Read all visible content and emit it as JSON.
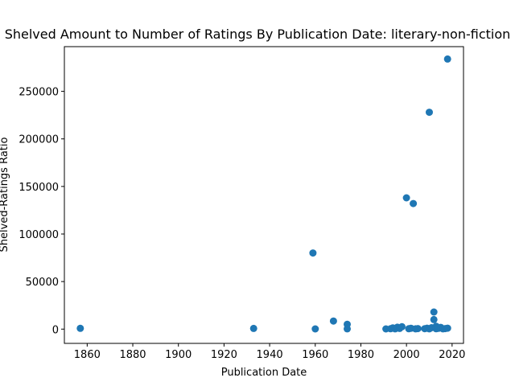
{
  "chart_data": {
    "type": "scatter",
    "title": "Shelved Amount to Number of Ratings By Publication Date: literary-non-fiction",
    "xlabel": "Publication Date",
    "ylabel": "Shelved-Ratings Ratio",
    "xlim": [
      1850,
      2025
    ],
    "ylim": [
      -15000,
      297000
    ],
    "xticks": [
      1860,
      1880,
      1900,
      1920,
      1940,
      1960,
      1980,
      2000,
      2020
    ],
    "yticks": [
      0,
      50000,
      100000,
      150000,
      200000,
      250000
    ],
    "grid": false,
    "color": "#1f77b4",
    "points": [
      {
        "x": 1857,
        "y": 800
      },
      {
        "x": 1933,
        "y": 700
      },
      {
        "x": 1959,
        "y": 80000
      },
      {
        "x": 1960,
        "y": 200
      },
      {
        "x": 1968,
        "y": 8500
      },
      {
        "x": 1974,
        "y": 5000
      },
      {
        "x": 1974,
        "y": 300
      },
      {
        "x": 1991,
        "y": 200
      },
      {
        "x": 1993,
        "y": 400
      },
      {
        "x": 1994,
        "y": 1200
      },
      {
        "x": 1995,
        "y": 300
      },
      {
        "x": 1996,
        "y": 2000
      },
      {
        "x": 1997,
        "y": 700
      },
      {
        "x": 1998,
        "y": 2500
      },
      {
        "x": 2000,
        "y": 138000
      },
      {
        "x": 2001,
        "y": 400
      },
      {
        "x": 2002,
        "y": 900
      },
      {
        "x": 2003,
        "y": 132000
      },
      {
        "x": 2004,
        "y": 300
      },
      {
        "x": 2005,
        "y": 600
      },
      {
        "x": 2008,
        "y": 500
      },
      {
        "x": 2009,
        "y": 1000
      },
      {
        "x": 2010,
        "y": 228000
      },
      {
        "x": 2010,
        "y": 300
      },
      {
        "x": 2011,
        "y": 1500
      },
      {
        "x": 2012,
        "y": 18000
      },
      {
        "x": 2012,
        "y": 10000
      },
      {
        "x": 2013,
        "y": 3000
      },
      {
        "x": 2013,
        "y": 400
      },
      {
        "x": 2014,
        "y": 800
      },
      {
        "x": 2015,
        "y": 1800
      },
      {
        "x": 2016,
        "y": 300
      },
      {
        "x": 2017,
        "y": 600
      },
      {
        "x": 2018,
        "y": 284000
      },
      {
        "x": 2018,
        "y": 1000
      }
    ]
  }
}
